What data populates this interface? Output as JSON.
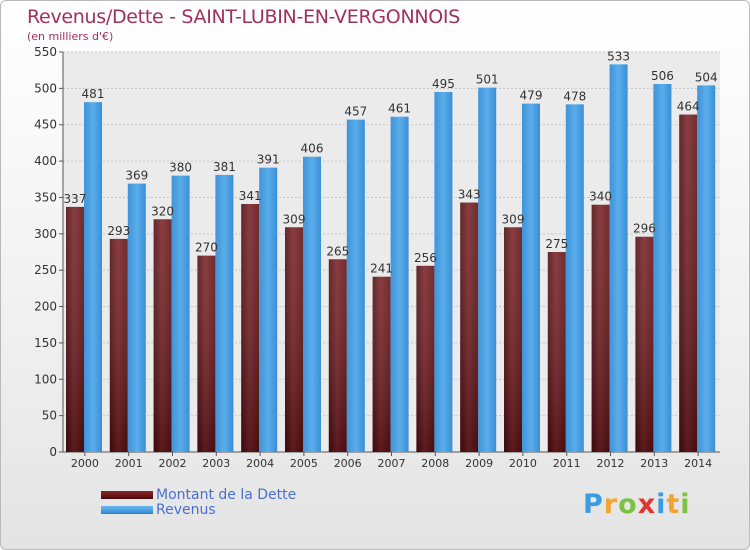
{
  "chart": {
    "title": "Revenus/Dette - SAINT-LUBIN-EN-VERGONNOIS",
    "subtitle": "(en milliers d'€)"
  },
  "legend": {
    "dette_label": "Montant de la Dette",
    "revenus_label": "Revenus"
  },
  "logo": {
    "text": "Proxiti",
    "letters": [
      "P",
      "r",
      "o",
      "x",
      "i",
      "t",
      "i"
    ]
  },
  "colors": {
    "dette": "#6b1518",
    "revenus": "#4a9fe0",
    "title": "#a0305d",
    "legend_text": "#4a6fd0"
  },
  "chart_data": {
    "type": "bar",
    "title": "Revenus/Dette - SAINT-LUBIN-EN-VERGONNOIS",
    "subtitle": "(en milliers d'€)",
    "categories": [
      "2000",
      "2001",
      "2002",
      "2003",
      "2004",
      "2005",
      "2006",
      "2007",
      "2008",
      "2009",
      "2010",
      "2011",
      "2012",
      "2013",
      "2014"
    ],
    "series": [
      {
        "name": "Montant de la Dette",
        "values": [
          337,
          293,
          320,
          270,
          341,
          309,
          265,
          241,
          256,
          343,
          309,
          275,
          340,
          296,
          464
        ]
      },
      {
        "name": "Revenus",
        "values": [
          481,
          369,
          380,
          381,
          391,
          406,
          457,
          461,
          495,
          501,
          479,
          478,
          533,
          506,
          504
        ]
      }
    ],
    "ylim": [
      0,
      550
    ],
    "yticks": [
      0,
      50,
      100,
      150,
      200,
      250,
      300,
      350,
      400,
      450,
      500,
      550
    ],
    "grid": true,
    "legend_position": "bottom-left"
  }
}
